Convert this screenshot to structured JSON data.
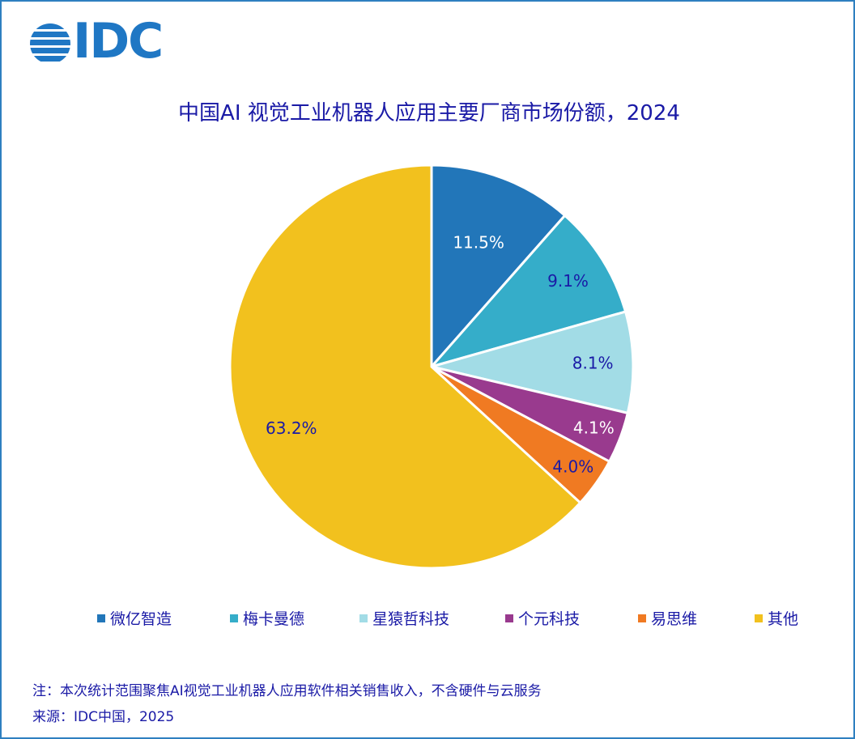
{
  "logo": {
    "text": "IDC"
  },
  "chart_data": {
    "type": "pie",
    "title": "中国AI 视觉工业机器人应用主要厂商市场份额，2024",
    "categories": [
      "微亿智造",
      "梅卡曼德",
      "星猿哲科技",
      "个元科技",
      "易思维",
      "其他"
    ],
    "values": [
      11.5,
      9.1,
      8.1,
      4.1,
      4.0,
      63.2
    ],
    "labels": [
      "11.5%",
      "9.1%",
      "8.1%",
      "4.1%",
      "4.0%",
      "63.2%"
    ],
    "colors": [
      "#2276b9",
      "#35adc9",
      "#a2dce6",
      "#993a8e",
      "#f07a22",
      "#f2c11e"
    ],
    "label_colors": [
      "#ffffff",
      "#1a1aa6",
      "#1a1aa6",
      "#ffffff",
      "#1a1aa6",
      "#1a1aa6"
    ],
    "legend_position": "bottom"
  },
  "footer": {
    "note": "注：本次统计范围聚焦AI视觉工业机器人应用软件相关销售收入，不含硬件与云服务",
    "source": "来源：IDC中国，2025"
  }
}
